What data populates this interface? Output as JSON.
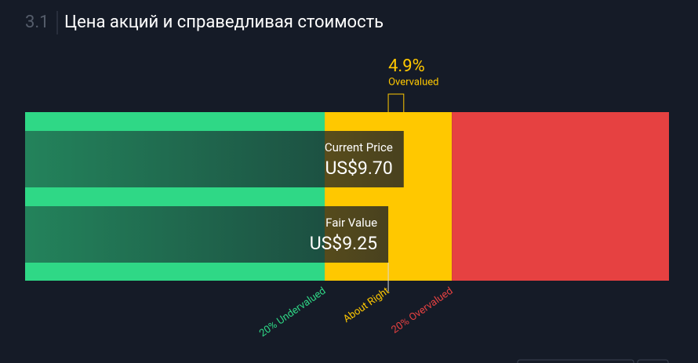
{
  "chart_data": {
    "type": "valuation",
    "section": "3.1",
    "title": "Цена акций и справедливая стоимость",
    "categories": [
      "Current Price",
      "Fair Value"
    ],
    "values": [
      9.7,
      9.25
    ],
    "value_labels": [
      "US$9.70",
      "US$9.25"
    ],
    "difference": {
      "value": 4.9,
      "label": "4.9%",
      "caption": "Overvalued",
      "color": "#ffc800"
    },
    "zones": [
      {
        "label": "20% Undervalued",
        "color": "#2fd886",
        "to": 7.4
      },
      {
        "label": "About Right",
        "color": "#ffc800",
        "to": 11.1
      },
      {
        "label": "20% Overvalued",
        "color": "#e64141"
      }
    ],
    "xlim": [
      -1.32,
      17.42
    ]
  }
}
